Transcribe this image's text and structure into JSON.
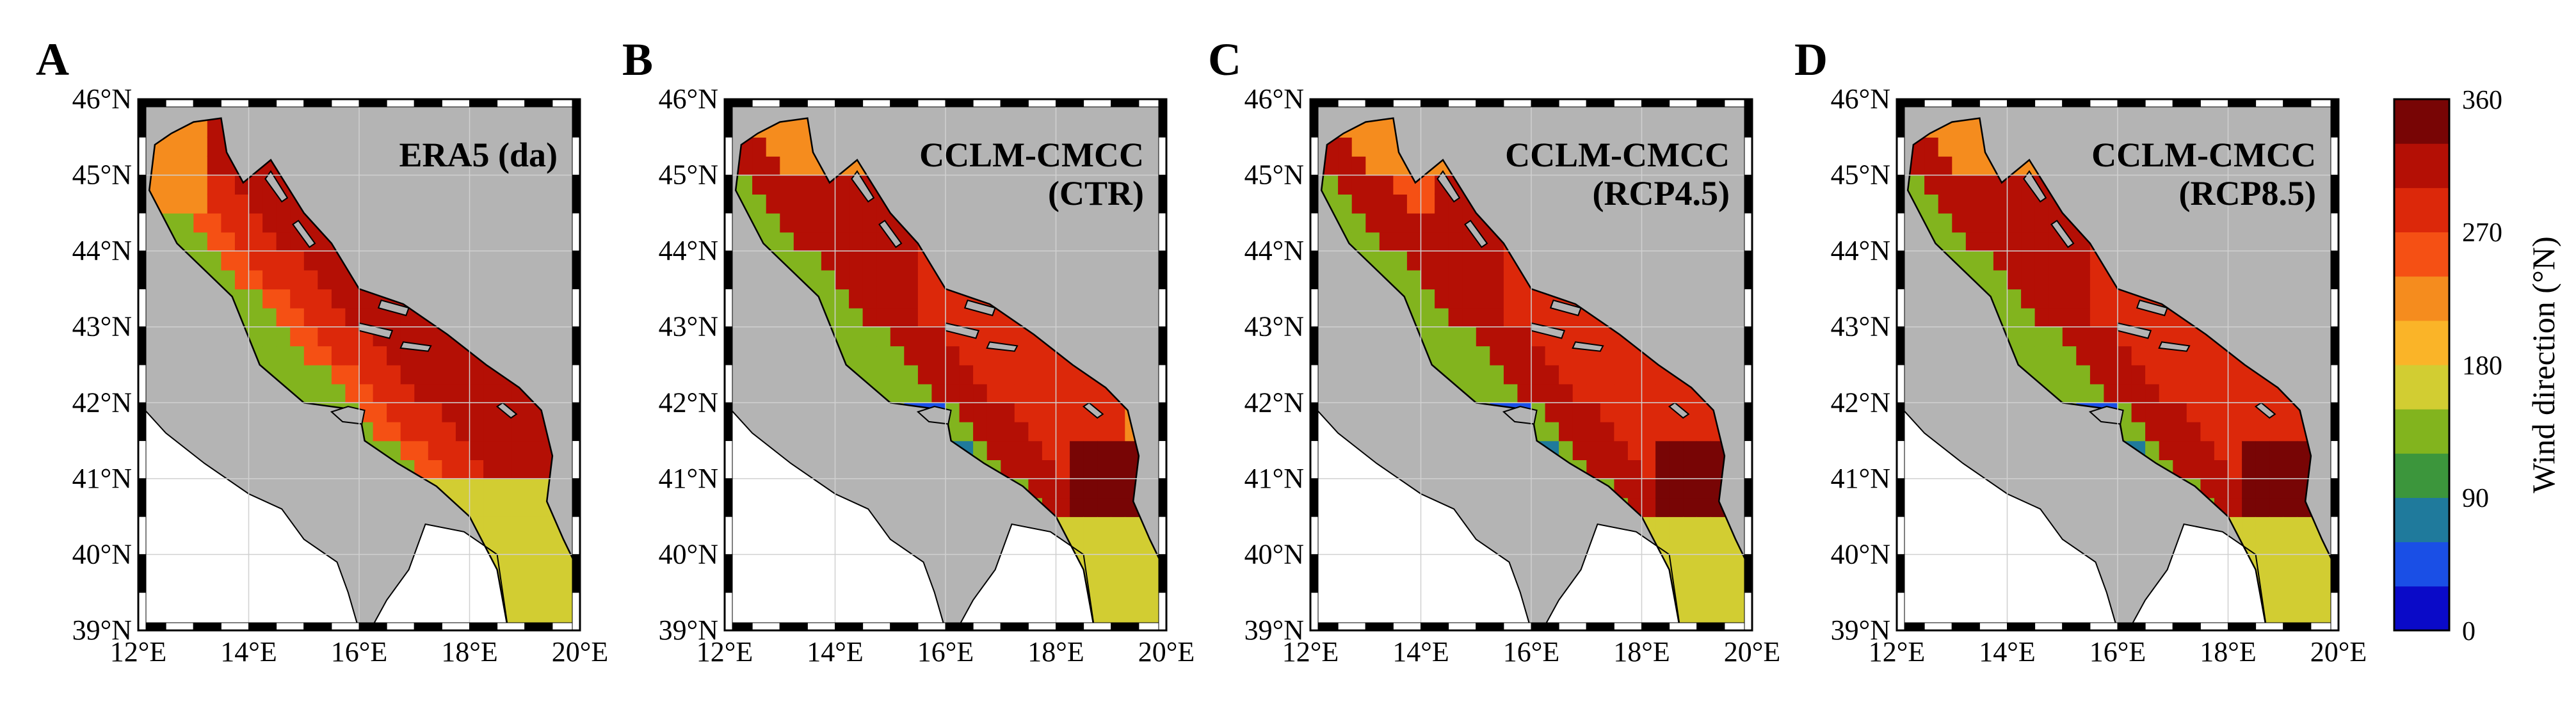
{
  "figure": {
    "panels": [
      {
        "letter": "A",
        "title_lines": [
          "ERA5 (da)"
        ],
        "variant": "era5"
      },
      {
        "letter": "B",
        "title_lines": [
          "CCLM-CMCC",
          "(CTR)"
        ],
        "variant": "ctr"
      },
      {
        "letter": "C",
        "title_lines": [
          "CCLM-CMCC",
          "(RCP4.5)"
        ],
        "variant": "rcp45"
      },
      {
        "letter": "D",
        "title_lines": [
          "CCLM-CMCC",
          "(RCP8.5)"
        ],
        "variant": "rcp85"
      }
    ],
    "lat_ticks": [
      "46°N",
      "45°N",
      "44°N",
      "43°N",
      "42°N",
      "41°N",
      "40°N",
      "39°N"
    ],
    "lon_ticks": [
      "12°E",
      "14°E",
      "16°E",
      "18°E",
      "20°E"
    ],
    "colorbar": {
      "title": "Wind direction (°N)",
      "tick_labels": [
        "0",
        "90",
        "180",
        "270",
        "360"
      ],
      "colors": [
        "#0a0ac8",
        "#1a4fe6",
        "#1f7a9c",
        "#3c963c",
        "#82b41e",
        "#d2cd32",
        "#fab428",
        "#f58c1e",
        "#f55014",
        "#dc280a",
        "#b40f05",
        "#780505"
      ]
    },
    "colors": {
      "land": "#b4b4b4",
      "outside": "#ffffff",
      "frame": "#000000"
    }
  }
}
